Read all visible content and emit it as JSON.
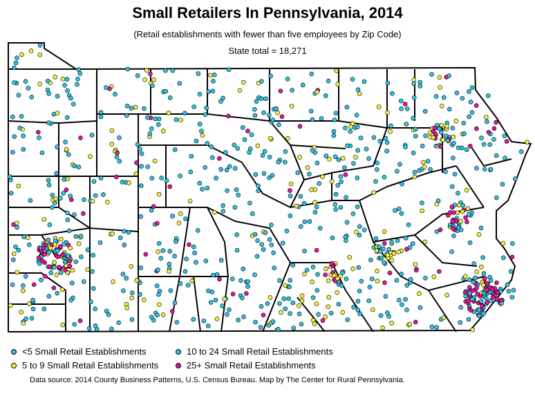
{
  "title": "Small Retailers In Pennsylvania, 2014",
  "subtitle": "(Retail establishments with fewer than five employees by Zip Code)",
  "state_total": "State total = 18,271",
  "legend": [
    {
      "label": "<5 Small Retail Establishments",
      "color": "#2ec4e6"
    },
    {
      "label": "10 to 24 Small Retail Establishments",
      "color": "#2ec4e6"
    },
    {
      "label": "5 to 9 Small Retail Establishments",
      "color": "#f5f03c"
    },
    {
      "label": "25+ Small Retail Establishments",
      "color": "#e0169c"
    }
  ],
  "source": "Data source: 2014 County Business Patterns, U.S. Census Bureau. Map by The Center for Rural Pennsylvania.",
  "colors": {
    "cyan": "#2ec4e6",
    "yellow": "#f5f03c",
    "magenta": "#e0169c",
    "outline": "#000000"
  }
}
